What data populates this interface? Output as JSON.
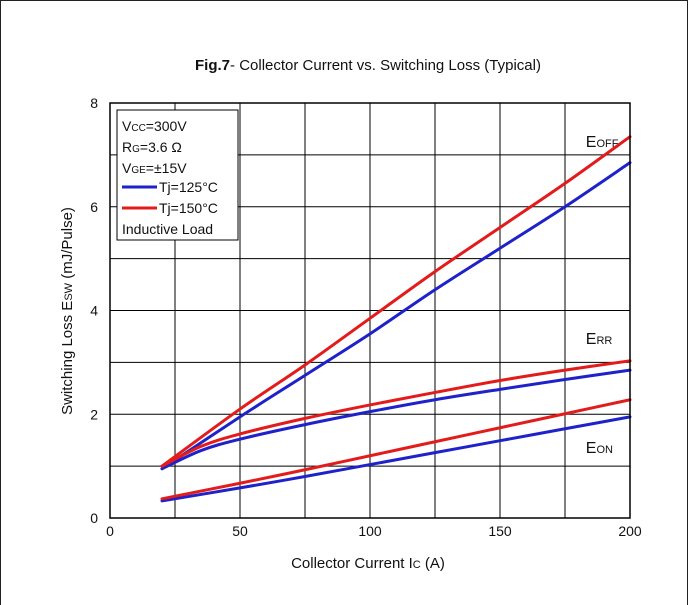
{
  "chart_data": {
    "type": "line",
    "title_bold": "Fig.7",
    "title_rest": "- Collector Current vs. Switching Loss  (Typical)",
    "xlabel_main": "Collector Current I",
    "xlabel_sub": "C",
    "xlabel_unit": "  (A)",
    "ylabel_main": "Switching Loss E",
    "ylabel_sub": "SW",
    "ylabel_unit": " (mJ/Pulse)",
    "xlim": [
      0,
      200
    ],
    "ylim": [
      0,
      8
    ],
    "xticks": [
      "0",
      "50",
      "100",
      "150",
      "200"
    ],
    "yticks": [
      "0",
      "2",
      "4",
      "6",
      "8"
    ],
    "grid": true,
    "conditions": {
      "vcc": {
        "main": "V",
        "sub": "CC",
        "rest": "=300V"
      },
      "rg": {
        "main": "R",
        "sub": "G",
        "rest": "=3.6 Ω"
      },
      "vge": {
        "main": "V",
        "sub": "GE",
        "rest": "=±15V"
      },
      "load": "Inductive Load"
    },
    "legend": [
      {
        "label": "Tj=125°C",
        "color": "#1e22c8"
      },
      {
        "label": "Tj=150°C",
        "color": "#e31b1b"
      }
    ],
    "curve_labels": [
      {
        "main": "E",
        "sub": "OFF",
        "x": 183,
        "y": 7.15
      },
      {
        "main": "E",
        "sub": "RR",
        "x": 183,
        "y": 3.35
      },
      {
        "main": "E",
        "sub": "ON",
        "x": 183,
        "y": 1.25
      }
    ],
    "series": [
      {
        "group": "E_OFF",
        "temp": "Tj=125°C",
        "color": "#1e22c8",
        "x": [
          20,
          50,
          75,
          100,
          125,
          150,
          175,
          200
        ],
        "y": [
          0.95,
          1.95,
          2.75,
          3.55,
          4.4,
          5.2,
          6.0,
          6.85
        ]
      },
      {
        "group": "E_OFF",
        "temp": "Tj=150°C",
        "color": "#e31b1b",
        "x": [
          20,
          50,
          75,
          100,
          125,
          150,
          175,
          200
        ],
        "y": [
          1.0,
          2.1,
          2.95,
          3.85,
          4.75,
          5.6,
          6.45,
          7.35
        ]
      },
      {
        "group": "E_RR",
        "temp": "Tj=125°C",
        "color": "#1e22c8",
        "x": [
          20,
          35,
          50,
          75,
          100,
          125,
          150,
          175,
          200
        ],
        "y": [
          0.95,
          1.3,
          1.52,
          1.8,
          2.05,
          2.28,
          2.48,
          2.67,
          2.85
        ]
      },
      {
        "group": "E_RR",
        "temp": "Tj=150°C",
        "color": "#e31b1b",
        "x": [
          20,
          35,
          50,
          75,
          100,
          125,
          150,
          175,
          200
        ],
        "y": [
          1.0,
          1.38,
          1.62,
          1.92,
          2.18,
          2.42,
          2.65,
          2.85,
          3.03
        ]
      },
      {
        "group": "E_ON",
        "temp": "Tj=125°C",
        "color": "#1e22c8",
        "x": [
          20,
          50,
          75,
          100,
          125,
          150,
          175,
          200
        ],
        "y": [
          0.33,
          0.58,
          0.8,
          1.03,
          1.26,
          1.49,
          1.72,
          1.95
        ]
      },
      {
        "group": "E_ON",
        "temp": "Tj=150°C",
        "color": "#e31b1b",
        "x": [
          20,
          50,
          75,
          100,
          125,
          150,
          175,
          200
        ],
        "y": [
          0.37,
          0.67,
          0.93,
          1.2,
          1.47,
          1.74,
          2.01,
          2.28
        ]
      }
    ]
  }
}
